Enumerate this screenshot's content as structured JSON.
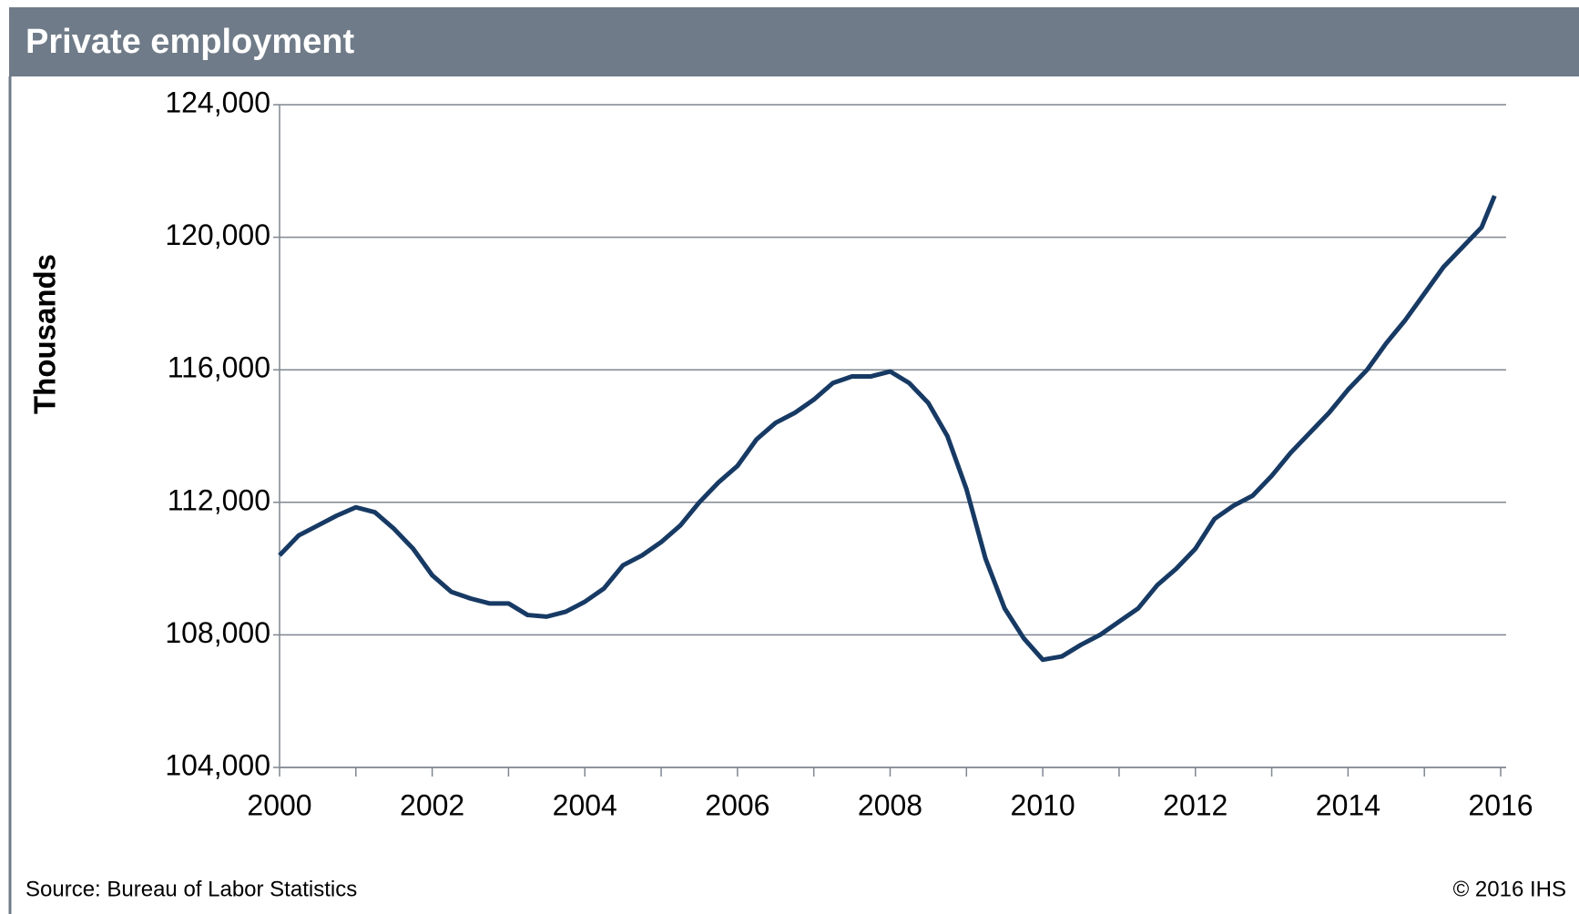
{
  "chart_data": {
    "type": "line",
    "title": "Private employment",
    "y_label": "Thousands",
    "source": "Source: Bureau of Labor Statistics",
    "copyright": "© 2016 IHS",
    "xlim": [
      2000,
      2016
    ],
    "xticks": [
      2000,
      2002,
      2004,
      2006,
      2008,
      2010,
      2012,
      2014,
      2016
    ],
    "ylim": [
      104000,
      124000
    ],
    "yticks": [
      {
        "value": 104000,
        "label": "104,000"
      },
      {
        "value": 108000,
        "label": "108,000"
      },
      {
        "value": 112000,
        "label": "112,000"
      },
      {
        "value": 116000,
        "label": "116,000"
      },
      {
        "value": 120000,
        "label": "120,000"
      },
      {
        "value": 124000,
        "label": "124,000"
      }
    ],
    "grid": true,
    "x": [
      2000,
      2000.25,
      2000.5,
      2000.75,
      2001,
      2001.25,
      2001.5,
      2001.75,
      2002,
      2002.25,
      2002.5,
      2002.75,
      2003,
      2003.25,
      2003.5,
      2003.75,
      2004,
      2004.25,
      2004.5,
      2004.75,
      2005,
      2005.25,
      2005.5,
      2005.75,
      2006,
      2006.25,
      2006.5,
      2006.75,
      2007,
      2007.25,
      2007.5,
      2007.75,
      2008,
      2008.25,
      2008.5,
      2008.75,
      2009,
      2009.25,
      2009.5,
      2009.75,
      2010,
      2010.25,
      2010.5,
      2010.75,
      2011,
      2011.25,
      2011.5,
      2011.75,
      2012,
      2012.25,
      2012.5,
      2012.75,
      2013,
      2013.25,
      2013.5,
      2013.75,
      2014,
      2014.25,
      2014.5,
      2014.75,
      2015,
      2015.25,
      2015.5,
      2015.75,
      2015.92
    ],
    "series": [
      {
        "name": "Private employment",
        "color": "#173a64",
        "values": [
          110400,
          111000,
          111300,
          111600,
          111850,
          111700,
          111200,
          110600,
          109800,
          109300,
          109100,
          108950,
          108950,
          108600,
          108550,
          108700,
          109000,
          109400,
          110100,
          110400,
          110800,
          111300,
          112000,
          112600,
          113100,
          113900,
          114400,
          114700,
          115100,
          115600,
          115800,
          115800,
          115950,
          115600,
          115000,
          114000,
          112400,
          110300,
          108800,
          107900,
          107250,
          107350,
          107700,
          108000,
          108400,
          108800,
          109500,
          110000,
          110600,
          111500,
          111900,
          112200,
          112800,
          113500,
          114100,
          114700,
          115400,
          116000,
          116800,
          117500,
          118300,
          119100,
          119700,
          120300,
          121250
        ]
      }
    ]
  }
}
